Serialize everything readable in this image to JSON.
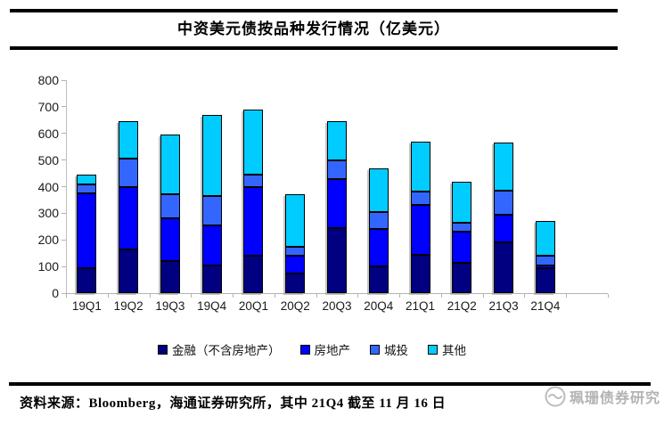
{
  "title": "中资美元债按品种发行情况（亿美元）",
  "footer": {
    "source_note": "资料来源：Bloomberg，海通证券研究所，其中 21Q4 截至 11 月 16 日",
    "watermark_text": "珮珊债券研究"
  },
  "chart_data": {
    "type": "bar",
    "stacked": true,
    "title": "中资美元债按品种发行情况（亿美元）",
    "categories": [
      "19Q1",
      "19Q2",
      "19Q3",
      "19Q4",
      "20Q1",
      "20Q2",
      "20Q3",
      "20Q4",
      "21Q1",
      "21Q2",
      "21Q3",
      "21Q4"
    ],
    "series": [
      {
        "name": "金融（不含房地产）",
        "color": "#000080",
        "values": [
          95,
          165,
          120,
          105,
          140,
          75,
          245,
          100,
          145,
          115,
          190,
          95
        ]
      },
      {
        "name": "房地产",
        "color": "#0000FF",
        "values": [
          280,
          235,
          160,
          150,
          260,
          65,
          185,
          140,
          185,
          115,
          105,
          10
        ]
      },
      {
        "name": "城投",
        "color": "#3366FF",
        "values": [
          35,
          105,
          90,
          110,
          45,
          35,
          70,
          65,
          50,
          35,
          90,
          35
        ]
      },
      {
        "name": "其他",
        "color": "#00CCFF",
        "values": [
          35,
          140,
          225,
          305,
          245,
          195,
          145,
          165,
          190,
          155,
          180,
          130
        ]
      }
    ],
    "totals": [
      445,
      645,
      595,
      670,
      690,
      370,
      645,
      470,
      570,
      420,
      565,
      270
    ],
    "xlabel": "",
    "ylabel": "",
    "ylim": [
      0,
      800
    ],
    "ytick_step": 100,
    "grid": false,
    "legend_position": "bottom",
    "axis_color": "#BFBFBF",
    "bar_border_color": "#000000"
  }
}
